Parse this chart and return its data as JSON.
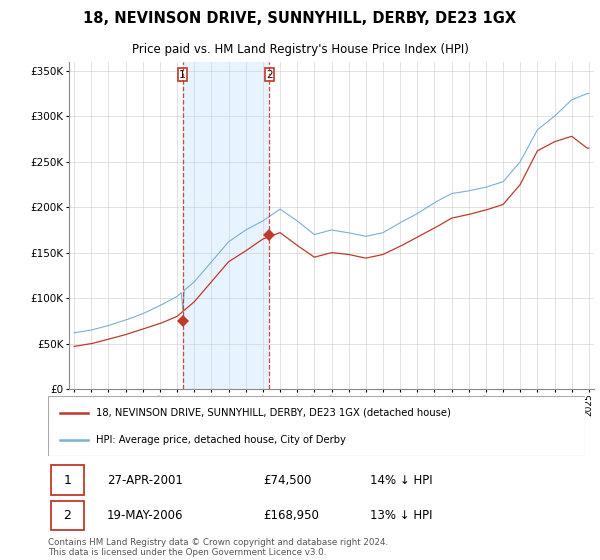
{
  "title": "18, NEVINSON DRIVE, SUNNYHILL, DERBY, DE23 1GX",
  "subtitle": "Price paid vs. HM Land Registry's House Price Index (HPI)",
  "legend_line1": "18, NEVINSON DRIVE, SUNNYHILL, DERBY, DE23 1GX (detached house)",
  "legend_line2": "HPI: Average price, detached house, City of Derby",
  "footnote": "Contains HM Land Registry data © Crown copyright and database right 2024.\nThis data is licensed under the Open Government Licence v3.0.",
  "sale1_date": "27-APR-2001",
  "sale1_price": "£74,500",
  "sale1_hpi": "14% ↓ HPI",
  "sale2_date": "19-MAY-2006",
  "sale2_price": "£168,950",
  "sale2_hpi": "13% ↓ HPI",
  "sale1_year": 2001.32,
  "sale1_value": 74500,
  "sale2_year": 2006.38,
  "sale2_value": 168950,
  "hpi_color": "#7ab0d4",
  "price_color": "#c0392b",
  "vline_color": "#c0392b",
  "shade_color": "#ddeeff",
  "background_color": "#ffffff",
  "grid_color": "#cccccc",
  "ylim": [
    0,
    360000
  ],
  "xlim_start": 1994.7,
  "xlim_end": 2025.3
}
